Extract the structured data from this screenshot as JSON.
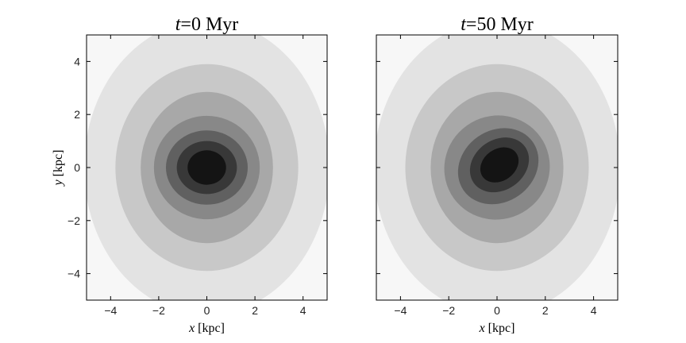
{
  "chart_data": [
    {
      "type": "contour",
      "title": "t=0 Myr",
      "title_parts": {
        "var": "t",
        "op": "=",
        "value": "0",
        "unit": "Myr"
      },
      "xlabel": "x [kpc]",
      "xlabel_parts": {
        "var": "x",
        "unit": "[kpc]"
      },
      "ylabel": "y [kpc]",
      "ylabel_parts": {
        "var": "y",
        "unit": "[kpc]"
      },
      "xlim": [
        -5,
        5
      ],
      "ylim": [
        -5,
        5
      ],
      "xticks": [
        -4,
        -2,
        0,
        2,
        4
      ],
      "yticks": [
        -4,
        -2,
        0,
        2,
        4
      ],
      "xtick_labels": [
        "−4",
        "−2",
        "0",
        "2",
        "4"
      ],
      "ytick_labels": [
        "−4",
        "−2",
        "0",
        "2",
        "4"
      ],
      "background_color": "#f7f7f7",
      "levels": [
        {
          "rx": 5.1,
          "ry": 5.55,
          "cx": 0.0,
          "cy": 0.0,
          "angle": 0,
          "color": "#e3e3e3"
        },
        {
          "rx": 3.8,
          "ry": 3.9,
          "cx": 0.0,
          "cy": 0.0,
          "angle": 0,
          "color": "#c8c8c8"
        },
        {
          "rx": 2.75,
          "ry": 2.85,
          "cx": 0.0,
          "cy": 0.0,
          "angle": 0,
          "color": "#a8a8a8"
        },
        {
          "rx": 2.2,
          "ry": 1.95,
          "cx": 0.0,
          "cy": 0.0,
          "angle": 0,
          "color": "#888888"
        },
        {
          "rx": 1.7,
          "ry": 1.4,
          "cx": 0.0,
          "cy": 0.0,
          "angle": 0,
          "color": "#606060"
        },
        {
          "rx": 1.25,
          "ry": 1.0,
          "cx": 0.0,
          "cy": 0.0,
          "angle": 0,
          "color": "#383838"
        },
        {
          "rx": 0.8,
          "ry": 0.65,
          "cx": 0.0,
          "cy": 0.0,
          "angle": 0,
          "color": "#141414"
        }
      ]
    },
    {
      "type": "contour",
      "title": "t=50 Myr",
      "title_parts": {
        "var": "t",
        "op": "=",
        "value": "50",
        "unit": "Myr"
      },
      "xlabel": "x [kpc]",
      "xlabel_parts": {
        "var": "x",
        "unit": "[kpc]"
      },
      "ylabel": "",
      "xlim": [
        -5,
        5
      ],
      "ylim": [
        -5,
        5
      ],
      "xticks": [
        -4,
        -2,
        0,
        2,
        4
      ],
      "yticks": [
        -4,
        -2,
        0,
        2,
        4
      ],
      "xtick_labels": [
        "−4",
        "−2",
        "0",
        "2",
        "4"
      ],
      "ytick_labels": [],
      "background_color": "#f7f7f7",
      "levels": [
        {
          "rx": 5.1,
          "ry": 5.55,
          "cx": 0.0,
          "cy": 0.0,
          "angle": 0,
          "color": "#e3e3e3"
        },
        {
          "rx": 3.8,
          "ry": 3.9,
          "cx": 0.0,
          "cy": 0.0,
          "angle": 0,
          "color": "#c8c8c8"
        },
        {
          "rx": 2.75,
          "ry": 2.85,
          "cx": 0.0,
          "cy": 0.0,
          "angle": 0,
          "color": "#a8a8a8"
        },
        {
          "rx": 2.2,
          "ry": 1.95,
          "cx": 0.0,
          "cy": 0.0,
          "angle": -30,
          "color": "#888888"
        },
        {
          "rx": 1.75,
          "ry": 1.35,
          "cx": 0.05,
          "cy": 0.05,
          "angle": -35,
          "color": "#606060"
        },
        {
          "rx": 1.3,
          "ry": 0.95,
          "cx": 0.1,
          "cy": 0.1,
          "angle": -35,
          "color": "#383838"
        },
        {
          "rx": 0.85,
          "ry": 0.6,
          "cx": 0.1,
          "cy": 0.1,
          "angle": -35,
          "color": "#141414"
        }
      ]
    }
  ]
}
